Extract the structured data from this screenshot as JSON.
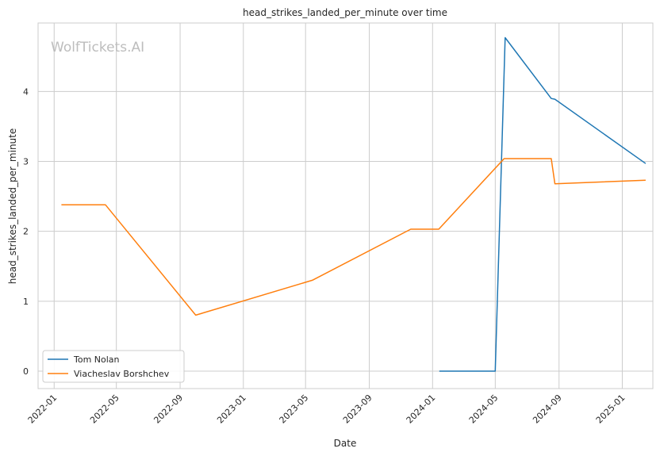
{
  "chart_data": {
    "type": "line",
    "title": "head_strikes_landed_per_minute over time",
    "xlabel": "Date",
    "ylabel": "head_strikes_landed_per_minute",
    "watermark": "WolfTickets.AI",
    "xlim": [
      "2021-12-01",
      "2025-03-01"
    ],
    "ylim": [
      -0.25,
      4.98
    ],
    "x_ticks": [
      "2022-01",
      "2022-05",
      "2022-09",
      "2023-01",
      "2023-05",
      "2023-09",
      "2024-01",
      "2024-05",
      "2024-09",
      "2025-01"
    ],
    "y_ticks": [
      0,
      1,
      2,
      3,
      4
    ],
    "grid": true,
    "legend_position": "lower-left",
    "series": [
      {
        "name": "Tom Nolan",
        "color": "#1f77b4",
        "x": [
          "2024-01-14",
          "2024-05-01",
          "2024-05-20",
          "2024-08-17",
          "2024-08-24",
          "2025-02-15"
        ],
        "values": [
          0.0,
          0.0,
          4.77,
          3.9,
          3.89,
          2.97
        ]
      },
      {
        "name": "Viacheslav Borshchev",
        "color": "#ff7f0e",
        "x": [
          "2022-01-15",
          "2022-04-10",
          "2022-10-01",
          "2023-05-14",
          "2023-11-20",
          "2024-01-13",
          "2024-05-18",
          "2024-08-17",
          "2024-08-24",
          "2025-02-15"
        ],
        "values": [
          2.38,
          2.38,
          0.8,
          1.3,
          2.03,
          2.03,
          3.04,
          3.04,
          2.68,
          2.73
        ]
      }
    ]
  }
}
